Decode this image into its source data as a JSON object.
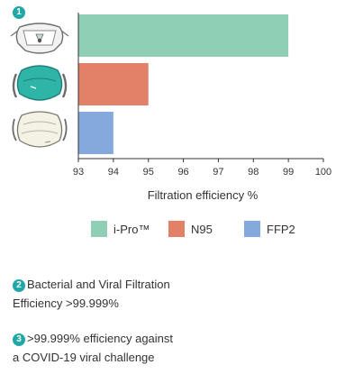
{
  "chart_data": {
    "type": "bar",
    "orientation": "horizontal",
    "categories": [
      "i-Pro™",
      "N95",
      "FFP2"
    ],
    "values": [
      99,
      95,
      94
    ],
    "colors": [
      "#8fcfb5",
      "#e38068",
      "#84a9dc"
    ],
    "xlabel": "Filtration efficiency %",
    "xlim": [
      93,
      100
    ],
    "xticks": [
      93,
      94,
      95,
      96,
      97,
      98,
      99,
      100
    ],
    "grid": false,
    "legend_position": "bottom"
  },
  "legend": [
    {
      "label": "i-Pro™",
      "color": "#8fcfb5"
    },
    {
      "label": "N95",
      "color": "#e38068"
    },
    {
      "label": "FFP2",
      "color": "#84a9dc"
    }
  ],
  "badges": {
    "one": "1",
    "two": "2",
    "three": "3"
  },
  "badge_color": "#20a7a6",
  "masks": [
    {
      "icon": "i-pro-mask-icon"
    },
    {
      "icon": "n95-mask-icon"
    },
    {
      "icon": "ffp2-mask-icon"
    }
  ],
  "notes": {
    "note2_line1": "Bacterial and Viral Filtration",
    "note2_line2": "Efficiency >99.999%",
    "note3_line1": ">99.999% efficiency against",
    "note3_line2": "a COVID-19 viral challenge"
  }
}
